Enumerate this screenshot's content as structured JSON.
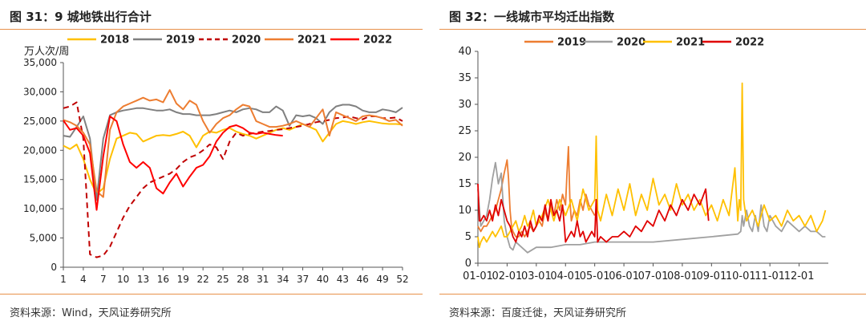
{
  "left_panel": {
    "title": "图 31：9 城地铁出行合计",
    "source": "资料来源：Wind，天风证券研究所"
  },
  "right_panel": {
    "title": "图 32：一线城市平均迁出指数",
    "source": "资料来源：百度迁徙，天风证券研究所"
  },
  "chart_data": [
    {
      "type": "line",
      "title": "",
      "xlabel": "",
      "ylabel": "万人次/周",
      "xlim": [
        1,
        52
      ],
      "ylim": [
        0,
        35000
      ],
      "x_ticks": [
        1,
        4,
        7,
        10,
        13,
        16,
        19,
        22,
        25,
        28,
        31,
        34,
        37,
        40,
        43,
        46,
        49,
        52
      ],
      "y_ticks": [
        "0",
        "5,000",
        "10,000",
        "15,000",
        "20,000",
        "25,000",
        "30,000",
        "35,000"
      ],
      "legend_position": "top",
      "grid": false,
      "series": [
        {
          "name": "2018",
          "color": "#ffc000",
          "dash": "solid",
          "x": [
            1,
            2,
            3,
            4,
            5,
            6,
            7,
            8,
            9,
            10,
            11,
            12,
            13,
            14,
            15,
            16,
            17,
            18,
            19,
            20,
            21,
            22,
            23,
            24,
            25,
            26,
            27,
            28,
            29,
            30,
            31,
            32,
            33,
            34,
            35,
            36,
            37,
            38,
            39,
            40,
            41,
            42,
            43,
            44,
            45,
            46,
            47,
            48,
            49,
            50,
            51,
            52
          ],
          "values": [
            20800,
            20200,
            21000,
            18500,
            15000,
            12500,
            13500,
            18500,
            22000,
            22500,
            23000,
            22800,
            21500,
            22000,
            22500,
            22600,
            22500,
            22800,
            23200,
            22500,
            20500,
            22500,
            23200,
            23000,
            23500,
            23800,
            23200,
            22800,
            22500,
            22000,
            22500,
            23000,
            23500,
            23800,
            23500,
            24000,
            24500,
            24000,
            23500,
            21500,
            23000,
            24500,
            25000,
            24800,
            24500,
            24800,
            25000,
            24800,
            24600,
            24500,
            24500,
            24400
          ]
        },
        {
          "name": "2019",
          "color": "#808080",
          "dash": "solid",
          "x": [
            1,
            2,
            3,
            4,
            5,
            6,
            7,
            8,
            9,
            10,
            11,
            12,
            13,
            14,
            15,
            16,
            17,
            18,
            19,
            20,
            21,
            22,
            23,
            24,
            25,
            26,
            27,
            28,
            29,
            30,
            31,
            32,
            33,
            34,
            35,
            36,
            37,
            38,
            39,
            40,
            41,
            42,
            43,
            44,
            45,
            46,
            47,
            48,
            49,
            50,
            51,
            52
          ],
          "values": [
            22500,
            22300,
            24000,
            25800,
            22000,
            11500,
            22000,
            26000,
            26500,
            26800,
            27000,
            27200,
            27200,
            27000,
            26800,
            26800,
            27000,
            26500,
            26200,
            26200,
            26000,
            26000,
            26000,
            26200,
            26500,
            26800,
            26500,
            27000,
            27200,
            27000,
            26500,
            26500,
            27500,
            26800,
            24200,
            26000,
            25800,
            26000,
            25500,
            24500,
            26500,
            27500,
            27800,
            27800,
            27500,
            26800,
            26500,
            26500,
            27000,
            26800,
            26500,
            27300
          ]
        },
        {
          "name": "2020",
          "color": "#c00000",
          "dash": "dashed",
          "x": [
            1,
            2,
            3,
            4,
            5,
            6,
            7,
            8,
            9,
            10,
            11,
            12,
            13,
            14,
            15,
            16,
            17,
            18,
            19,
            20,
            21,
            22,
            23,
            24,
            25,
            26,
            27,
            28,
            29,
            30,
            31,
            32,
            33,
            34,
            35,
            36,
            37,
            38,
            39,
            40,
            41,
            42,
            43,
            44,
            45,
            46,
            47,
            48,
            49,
            50,
            51,
            52
          ],
          "values": [
            27200,
            27500,
            28200,
            22000,
            2200,
            1700,
            2000,
            3500,
            6000,
            8500,
            10500,
            12000,
            13500,
            14500,
            15000,
            15500,
            16000,
            16800,
            18000,
            18800,
            19200,
            20000,
            21000,
            20500,
            18500,
            21500,
            23000,
            22500,
            22800,
            23000,
            23200,
            23300,
            23500,
            23600,
            23800,
            24000,
            24200,
            24500,
            24800,
            25000,
            25200,
            25500,
            25600,
            25800,
            25500,
            25300,
            25800,
            25800,
            25500,
            25500,
            25600,
            25000
          ]
        },
        {
          "name": "2021",
          "color": "#ed7d31",
          "dash": "solid",
          "x": [
            1,
            2,
            3,
            4,
            5,
            6,
            7,
            8,
            9,
            10,
            11,
            12,
            13,
            14,
            15,
            16,
            17,
            18,
            19,
            20,
            21,
            22,
            23,
            24,
            25,
            26,
            27,
            28,
            29,
            30,
            31,
            32,
            33,
            34,
            35,
            36,
            37,
            38,
            39,
            40,
            41,
            42,
            43,
            44,
            45,
            46,
            47,
            48,
            49,
            50,
            51,
            52
          ],
          "values": [
            25200,
            24800,
            24200,
            23000,
            21000,
            13000,
            12000,
            23500,
            26500,
            27500,
            28000,
            28500,
            29000,
            28500,
            28700,
            28200,
            30300,
            28000,
            27000,
            28500,
            27800,
            25000,
            23000,
            24500,
            25500,
            26000,
            27000,
            27800,
            27500,
            25000,
            24500,
            24000,
            24000,
            24200,
            24500,
            25000,
            24500,
            24000,
            25500,
            27000,
            22500,
            26500,
            26000,
            25500,
            25000,
            25800,
            26000,
            25800,
            25500,
            25000,
            25200,
            24200
          ]
        },
        {
          "name": "2022",
          "color": "#ff0000",
          "dash": "solid",
          "x": [
            1,
            2,
            3,
            4,
            5,
            6,
            7,
            8,
            9,
            10,
            11,
            12,
            13,
            14,
            15,
            16,
            17,
            18,
            19,
            20,
            21,
            22,
            23,
            24,
            25,
            26,
            27,
            28,
            29,
            30,
            31,
            32,
            33,
            34,
            35,
            36,
            37,
            38,
            39,
            40,
            41,
            42,
            43,
            44,
            45,
            46,
            47,
            48,
            49,
            50,
            51,
            52
          ],
          "values": [
            25100,
            23500,
            23800,
            22500,
            19500,
            9800,
            19000,
            25800,
            25000,
            21000,
            18000,
            17000,
            18000,
            17000,
            13500,
            12600,
            14500,
            16000,
            13800,
            15500,
            17000,
            17500,
            19000,
            21500,
            23000,
            24000,
            24300,
            23800,
            23000,
            22800,
            23000,
            22800,
            22600,
            22500,
            null,
            null,
            null,
            null,
            null,
            null,
            null,
            null,
            null,
            null,
            null,
            null,
            null,
            null,
            null,
            null,
            null,
            null
          ]
        }
      ]
    },
    {
      "type": "line",
      "title": "",
      "xlabel": "",
      "ylabel": "",
      "x_unit": "month",
      "xlim": [
        1,
        13
      ],
      "ylim": [
        0,
        40
      ],
      "x_ticks": [
        "01-01",
        "02-01",
        "03-01",
        "04-01",
        "05-01",
        "06-01",
        "07-01",
        "08-01",
        "09-01",
        "10-01",
        "11-01",
        "12-01"
      ],
      "y_ticks": [
        "0",
        "5",
        "10",
        "15",
        "20",
        "25",
        "30",
        "35",
        "40"
      ],
      "legend_position": "top",
      "grid": false,
      "series": [
        {
          "name": "2019",
          "color": "#ed7d31",
          "dash": "solid",
          "x": [
            1.0,
            1.1,
            1.2,
            1.3,
            1.4,
            1.5,
            1.6,
            1.7,
            1.8,
            1.9,
            2.0,
            2.05,
            2.1,
            2.15,
            2.2,
            2.3,
            2.4,
            2.5,
            2.6,
            2.7,
            2.8,
            2.9,
            3.0,
            3.1,
            3.2,
            3.3,
            3.4,
            3.5,
            3.6,
            3.7,
            3.8,
            3.9,
            4.0,
            4.05,
            4.1,
            4.15,
            4.2,
            4.3,
            4.4,
            4.5,
            4.6,
            4.7,
            4.8,
            4.9,
            5.0
          ],
          "values": [
            7,
            6,
            7,
            7,
            8,
            9,
            10,
            12,
            14,
            17,
            19.5,
            16,
            10,
            7,
            6,
            5,
            5,
            6,
            5,
            6,
            7,
            6,
            7,
            8,
            7,
            10,
            8,
            11,
            9,
            12,
            10,
            13,
            11,
            17,
            22,
            12,
            8,
            10,
            9,
            12,
            10,
            13,
            11,
            10,
            9
          ]
        },
        {
          "name": "2020",
          "color": "#a0a0a0",
          "dash": "solid",
          "x": [
            1.0,
            1.1,
            1.2,
            1.3,
            1.4,
            1.5,
            1.6,
            1.7,
            1.8,
            1.9,
            2.0,
            2.1,
            2.2,
            2.3,
            2.5,
            2.7,
            3.0,
            3.5,
            4.0,
            4.5,
            5.0,
            6.0,
            7.0,
            8.0,
            9.0,
            9.9,
            10.0,
            10.05,
            10.1,
            10.2,
            10.3,
            10.4,
            10.5,
            10.6,
            10.7,
            10.8,
            10.9,
            11.0,
            11.2,
            11.4,
            11.6,
            11.8,
            12.0,
            12.2,
            12.4,
            12.6,
            12.8,
            12.9
          ],
          "values": [
            14,
            7,
            8,
            9,
            12,
            16,
            19,
            15,
            17,
            8,
            5,
            3,
            2.5,
            4,
            3,
            2,
            3,
            3,
            3.5,
            3.5,
            4,
            4,
            4,
            4.5,
            5,
            5.5,
            6,
            9,
            7,
            10,
            7,
            6,
            9,
            6,
            11,
            7,
            6,
            9,
            7,
            6,
            8,
            7,
            6,
            7,
            6,
            6,
            5,
            5
          ]
        },
        {
          "name": "2021",
          "color": "#ffc000",
          "dash": "solid",
          "x": [
            1.0,
            1.05,
            1.1,
            1.2,
            1.3,
            1.4,
            1.5,
            1.6,
            1.7,
            1.8,
            1.9,
            2.0,
            2.1,
            2.2,
            2.3,
            2.4,
            2.5,
            2.6,
            2.7,
            2.8,
            2.9,
            3.0,
            3.2,
            3.4,
            3.6,
            3.8,
            4.0,
            4.2,
            4.4,
            4.6,
            4.8,
            5.0,
            5.05,
            5.1,
            5.2,
            5.4,
            5.6,
            5.8,
            6.0,
            6.2,
            6.4,
            6.6,
            6.8,
            7.0,
            7.2,
            7.4,
            7.6,
            7.8,
            8.0,
            8.2,
            8.4,
            8.6,
            8.8,
            9.0,
            9.2,
            9.4,
            9.6,
            9.8,
            9.9,
            9.95,
            10.0,
            10.05,
            10.1,
            10.2,
            10.4,
            10.6,
            10.8,
            11.0,
            11.2,
            11.4,
            11.6,
            11.8,
            12.0,
            12.2,
            12.4,
            12.6,
            12.8,
            12.9
          ],
          "values": [
            5,
            3,
            4,
            5,
            4,
            5,
            6,
            5,
            6,
            7,
            5,
            5,
            6,
            7,
            8,
            6,
            7,
            9,
            7,
            8,
            10,
            7,
            9,
            12,
            8,
            12,
            9,
            12,
            8,
            14,
            10,
            12,
            24,
            10,
            8,
            13,
            9,
            14,
            10,
            15,
            9,
            13,
            10,
            16,
            11,
            13,
            10,
            15,
            11,
            13,
            10,
            12,
            9,
            11,
            8,
            12,
            9,
            18,
            8,
            12,
            10,
            34,
            12,
            8,
            10,
            7,
            11,
            8,
            9,
            7,
            10,
            8,
            9,
            7,
            9,
            6,
            8,
            10
          ]
        },
        {
          "name": "2022",
          "color": "#e00000",
          "dash": "solid",
          "x": [
            1.0,
            1.05,
            1.1,
            1.2,
            1.3,
            1.4,
            1.5,
            1.6,
            1.7,
            1.8,
            1.9,
            2.0,
            2.1,
            2.2,
            2.3,
            2.4,
            2.5,
            2.6,
            2.7,
            2.8,
            2.9,
            3.0,
            3.1,
            3.2,
            3.3,
            3.4,
            3.5,
            3.6,
            3.7,
            3.8,
            3.9,
            4.0,
            4.1,
            4.2,
            4.3,
            4.4,
            4.5,
            4.6,
            4.7,
            4.8,
            4.9,
            5.0,
            5.05,
            5.1,
            5.2,
            5.4,
            5.6,
            5.8,
            6.0,
            6.2,
            6.4,
            6.6,
            6.8,
            7.0,
            7.2,
            7.4,
            7.6,
            7.8,
            8.0,
            8.2,
            8.4,
            8.6,
            8.8,
            8.9
          ],
          "values": [
            15,
            8,
            8,
            9,
            8,
            10,
            8,
            11,
            9,
            12,
            10,
            8,
            7,
            5,
            4,
            6,
            5,
            7,
            5,
            8,
            6,
            7,
            9,
            8,
            11,
            8,
            12,
            9,
            10,
            8,
            11,
            4,
            5,
            6,
            5,
            8,
            5,
            6,
            4,
            5,
            6,
            5,
            12,
            4,
            5,
            4,
            5,
            5,
            6,
            5,
            7,
            6,
            8,
            7,
            10,
            8,
            11,
            9,
            12,
            10,
            13,
            11,
            14,
            8
          ]
        }
      ]
    }
  ]
}
